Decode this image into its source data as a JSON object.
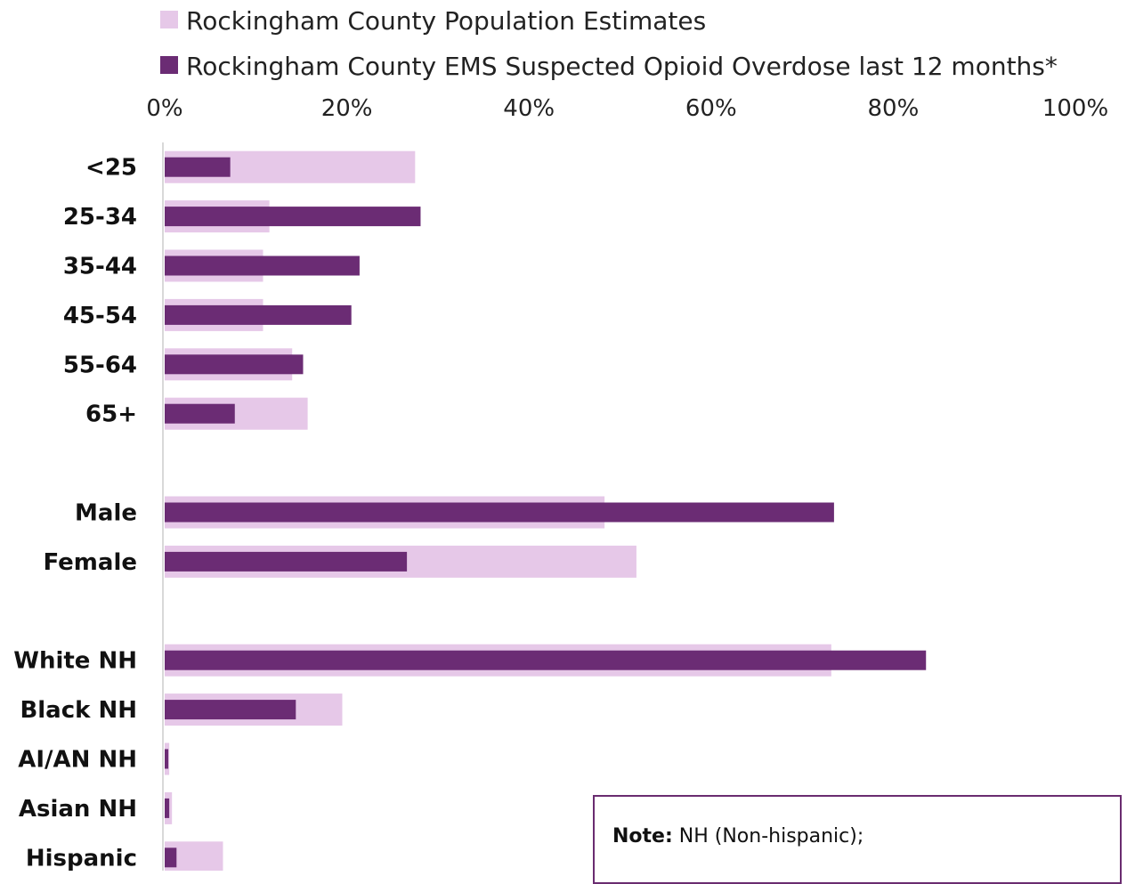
{
  "colors": {
    "population": "#e6c8e8",
    "ems": "#6b2c74",
    "axis": "#d9d9d9",
    "note_border": "#6a2c70"
  },
  "note": {
    "label": "Note:",
    "text": "NH (Non-hispanic);"
  },
  "chart_data": {
    "type": "bar",
    "orientation": "horizontal",
    "title": "",
    "xlabel": "",
    "ylabel": "",
    "xlim": [
      0,
      100
    ],
    "x_ticks": [
      "0%",
      "20%",
      "40%",
      "60%",
      "80%",
      "100%"
    ],
    "grid": false,
    "legend_position": "top",
    "categories": [
      "<25",
      "25-34",
      "35-44",
      "45-54",
      "55-64",
      "65+",
      "",
      "Male",
      "Female",
      "",
      "White NH",
      "Black NH",
      "AI/AN NH",
      "Asian NH",
      "Hispanic"
    ],
    "series": [
      {
        "name": "Rockingham County Population Estimates",
        "values": [
          27.5,
          11.5,
          10.8,
          10.8,
          14.0,
          15.7,
          null,
          48.3,
          51.8,
          null,
          73.2,
          19.5,
          0.5,
          0.8,
          6.4
        ]
      },
      {
        "name": "Rockingham County EMS Suspected Opioid Overdose last 12 months*",
        "values": [
          7.2,
          28.1,
          21.4,
          20.5,
          15.2,
          7.7,
          null,
          73.5,
          26.6,
          null,
          83.6,
          14.4,
          0.4,
          0.5,
          1.3
        ]
      }
    ]
  }
}
